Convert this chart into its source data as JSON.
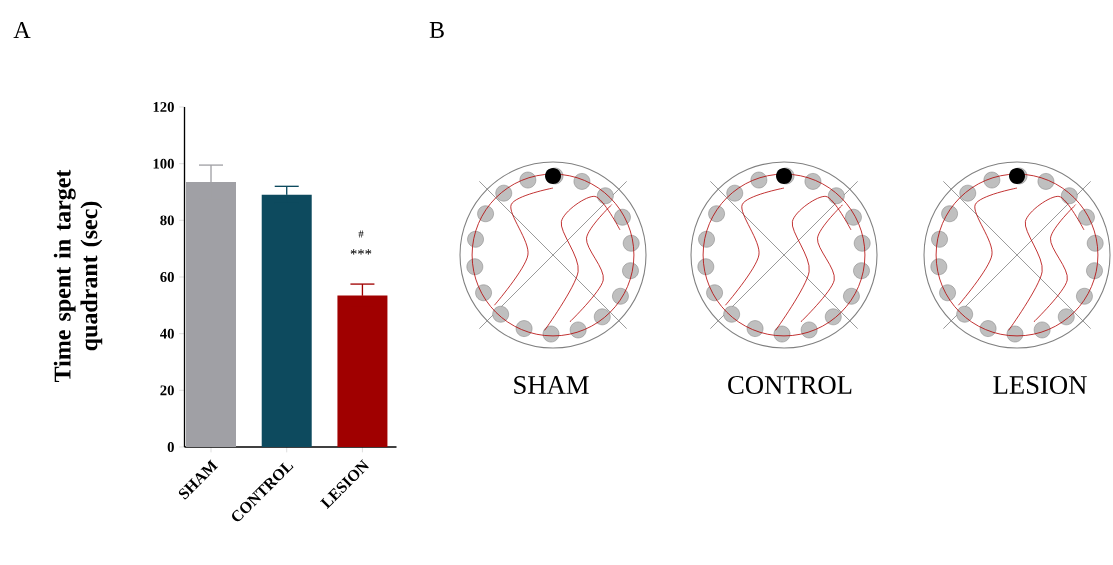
{
  "chart_data": {
    "type": "bar",
    "ylabel": "Time spent in target quadrant (sec)",
    "categories": [
      "SHAM",
      "CONTROL",
      "LESION"
    ],
    "values": [
      93.5,
      89,
      53.5
    ],
    "colors": [
      "#a0a0a5",
      "#0d4a5e",
      "#a00000"
    ],
    "errors": [
      6,
      3,
      4
    ],
    "ylim": [
      0,
      120
    ],
    "yticks": [
      0,
      20,
      40,
      60,
      80,
      100,
      120
    ],
    "grid": false,
    "annotations": [
      "A",
      "B",
      "#",
      "***",
      "SHAM",
      "CONTROL",
      "LESION"
    ]
  }
}
